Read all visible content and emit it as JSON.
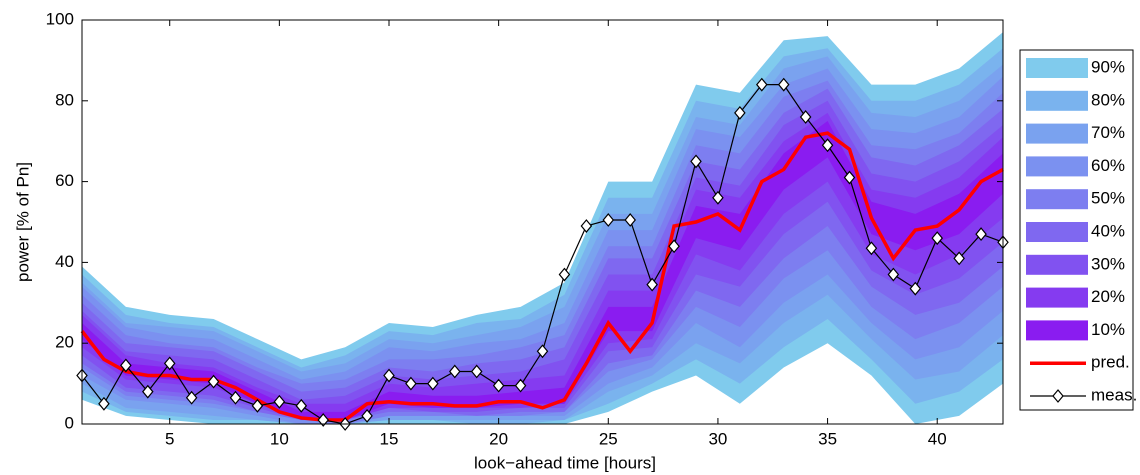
{
  "chart_data": {
    "type": "fan",
    "xlabel": "look−ahead time [hours]",
    "ylabel": "power [% of Pn]",
    "xlim": [
      1,
      43
    ],
    "ylim": [
      0,
      100
    ],
    "xticks": [
      5,
      10,
      15,
      20,
      25,
      30,
      35,
      40
    ],
    "yticks": [
      0,
      20,
      40,
      60,
      80,
      100
    ],
    "x": [
      1,
      2,
      3,
      4,
      5,
      6,
      7,
      8,
      9,
      10,
      11,
      12,
      13,
      14,
      15,
      16,
      17,
      18,
      19,
      20,
      21,
      22,
      23,
      24,
      25,
      26,
      27,
      28,
      29,
      30,
      31,
      32,
      33,
      34,
      35,
      36,
      37,
      38,
      39,
      40,
      41,
      42,
      43
    ],
    "band_x": [
      1,
      3,
      5,
      7,
      9,
      11,
      13,
      15,
      17,
      19,
      21,
      23,
      25,
      27,
      29,
      31,
      33,
      35,
      37,
      39,
      41,
      43
    ],
    "bands": [
      {
        "name": "90%",
        "color": "#80cbed",
        "upper": [
          39,
          29,
          27,
          26,
          21,
          16,
          19,
          25,
          24,
          27,
          29,
          35,
          60,
          60,
          84,
          82,
          95,
          96,
          84,
          84,
          88,
          97
        ],
        "lower": [
          6,
          2,
          1,
          0,
          0,
          0,
          0,
          0,
          0,
          0,
          0,
          0,
          3,
          8,
          12,
          5,
          14,
          20,
          12,
          0,
          2,
          10
        ]
      },
      {
        "name": "80%",
        "color": "#7ab3ee",
        "upper": [
          37,
          27,
          25,
          24,
          19,
          14,
          17,
          23,
          22,
          25,
          26,
          32,
          56,
          56,
          80,
          78,
          91,
          93,
          80,
          80,
          84,
          93
        ],
        "lower": [
          8,
          3,
          2,
          1,
          1,
          0,
          0,
          1,
          1,
          0,
          0,
          1,
          5,
          10,
          16,
          10,
          19,
          26,
          16,
          5,
          8,
          16
        ]
      },
      {
        "name": "70%",
        "color": "#7aa2ef",
        "upper": [
          35,
          25,
          24,
          23,
          18,
          13,
          15,
          21,
          20,
          22,
          24,
          29,
          52,
          52,
          76,
          74,
          88,
          91,
          77,
          76,
          80,
          89
        ],
        "lower": [
          10,
          4,
          3,
          2,
          1,
          0,
          0,
          1,
          1,
          1,
          1,
          1,
          8,
          12,
          20,
          15,
          25,
          32,
          21,
          11,
          13,
          22
        ]
      },
      {
        "name": "60%",
        "color": "#7b91f0",
        "upper": [
          34,
          24,
          22,
          21,
          16,
          11,
          13,
          19,
          18,
          20,
          21,
          25,
          48,
          48,
          73,
          71,
          84,
          88,
          73,
          72,
          76,
          86
        ],
        "lower": [
          12,
          6,
          5,
          4,
          2,
          0,
          0,
          2,
          2,
          2,
          2,
          2,
          10,
          14,
          25,
          19,
          30,
          37,
          25,
          16,
          19,
          28
        ]
      },
      {
        "name": "50%",
        "color": "#7d7ef0",
        "upper": [
          32,
          22,
          20,
          19,
          14,
          10,
          11,
          16,
          16,
          17,
          19,
          22,
          44,
          44,
          69,
          67,
          81,
          85,
          69,
          68,
          72,
          82
        ],
        "lower": [
          14,
          7,
          6,
          5,
          3,
          1,
          0,
          2,
          2,
          2,
          2,
          3,
          13,
          16,
          29,
          24,
          36,
          43,
          29,
          21,
          25,
          34
        ]
      },
      {
        "name": "40%",
        "color": "#7f68f0",
        "upper": [
          30,
          20,
          19,
          18,
          13,
          8,
          9,
          14,
          13,
          15,
          16,
          19,
          41,
          41,
          65,
          63,
          77,
          83,
          66,
          64,
          69,
          78
        ],
        "lower": [
          15,
          8,
          7,
          6,
          3,
          1,
          1,
          3,
          3,
          2,
          3,
          3,
          15,
          17,
          33,
          29,
          41,
          49,
          34,
          27,
          30,
          39
        ]
      },
      {
        "name": "30%",
        "color": "#8152f0",
        "upper": [
          28,
          18,
          17,
          16,
          11,
          6,
          7,
          12,
          11,
          12,
          13,
          16,
          37,
          37,
          61,
          59,
          74,
          80,
          62,
          60,
          65,
          74
        ],
        "lower": [
          17,
          9,
          8,
          7,
          4,
          1,
          1,
          4,
          3,
          3,
          4,
          4,
          18,
          19,
          37,
          34,
          47,
          55,
          38,
          32,
          36,
          45
        ]
      },
      {
        "name": "20%",
        "color": "#853bf0",
        "upper": [
          27,
          17,
          15,
          14,
          9,
          5,
          5,
          10,
          9,
          10,
          11,
          12,
          33,
          33,
          58,
          56,
          70,
          77,
          58,
          56,
          61,
          71
        ],
        "lower": [
          19,
          11,
          10,
          9,
          5,
          1,
          1,
          4,
          4,
          4,
          4,
          5,
          20,
          21,
          42,
          38,
          52,
          60,
          42,
          37,
          42,
          51
        ]
      },
      {
        "name": "10%",
        "color": "#8a1cf0",
        "upper": [
          25,
          15,
          14,
          13,
          8,
          3,
          3,
          8,
          7,
          7,
          8,
          9,
          29,
          29,
          54,
          52,
          67,
          75,
          55,
          52,
          57,
          67
        ],
        "lower": [
          21,
          12,
          11,
          10,
          5,
          1,
          1,
          5,
          4,
          4,
          5,
          5,
          23,
          23,
          46,
          43,
          58,
          66,
          47,
          43,
          47,
          57
        ]
      }
    ],
    "series": [
      {
        "name": "pred.",
        "color": "#ff0000",
        "values": [
          23,
          16,
          13,
          12,
          12,
          11,
          11,
          9,
          6,
          3,
          1.5,
          1,
          1,
          5,
          5.5,
          5,
          5,
          4.5,
          4.5,
          5.5,
          5.5,
          4,
          6,
          15,
          25,
          18,
          25,
          49,
          50,
          52,
          48,
          60,
          63,
          71,
          72,
          68,
          51,
          41,
          48,
          49,
          53,
          60,
          63
        ]
      },
      {
        "name": "meas.",
        "color": "#000000",
        "marker": "diamond",
        "values": [
          12,
          5,
          14.5,
          8,
          15,
          6.5,
          10.5,
          6.5,
          4.5,
          5.5,
          4.5,
          1,
          0,
          2,
          12,
          10,
          10,
          13,
          13,
          9.5,
          9.5,
          18,
          37,
          49,
          50.5,
          50.5,
          34.5,
          44,
          65,
          56,
          77,
          84,
          84,
          76,
          69,
          61,
          43.5,
          37,
          33.5,
          46,
          41,
          47,
          45
        ]
      }
    ]
  }
}
